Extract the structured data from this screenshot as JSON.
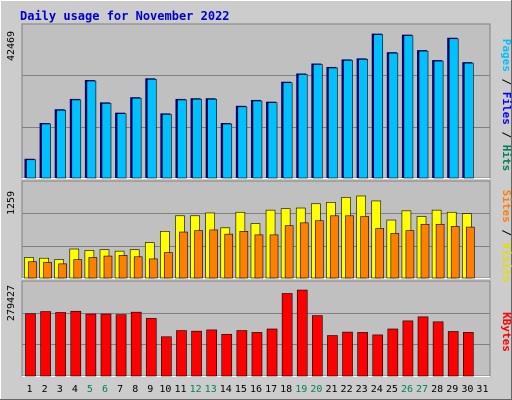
{
  "title": "Daily usage for November 2022",
  "right_labels": {
    "pages": "Pages",
    "files": "Files",
    "hits": "Hits",
    "sites": "Sites",
    "visits": "Visits",
    "kbytes": "KBytes",
    "sep": " / "
  },
  "colors": {
    "background": "#cccccc",
    "plot_bg": "#c0c0c0",
    "title": "#0000cc",
    "pages": "#00c0ff",
    "files": "#0000ff",
    "hits": "#00805c",
    "visits": "#ffff00",
    "sites": "#ff8000",
    "kbytes": "#ff0000",
    "weekend_day": "#00805c",
    "weekday": "#000000"
  },
  "chart_data": [
    {
      "type": "bar",
      "name": "hits-files-pages",
      "categories": [
        "1",
        "2",
        "3",
        "4",
        "5",
        "6",
        "7",
        "8",
        "9",
        "10",
        "11",
        "12",
        "13",
        "14",
        "15",
        "16",
        "17",
        "18",
        "19",
        "20",
        "21",
        "22",
        "23",
        "24",
        "25",
        "26",
        "27",
        "28",
        "29",
        "30",
        "31"
      ],
      "max_label": "42469",
      "ylim": [
        0,
        42469
      ],
      "series": [
        {
          "name": "Hits",
          "values": [
            5600,
            16000,
            20000,
            23000,
            28500,
            22000,
            19000,
            23500,
            29000,
            18800,
            23000,
            23200,
            23200,
            16000,
            21000,
            22700,
            22200,
            28000,
            30400,
            33300,
            32300,
            34500,
            34800,
            42000,
            36600,
            41700,
            37200,
            34300,
            40800,
            33700,
            null
          ]
        },
        {
          "name": "Pages",
          "values": [
            5600,
            16000,
            20000,
            23000,
            28500,
            22000,
            19000,
            23500,
            29000,
            18800,
            23000,
            23200,
            23200,
            16000,
            21000,
            22700,
            22200,
            28000,
            30400,
            33300,
            32300,
            34500,
            34800,
            42000,
            36600,
            41700,
            37200,
            34300,
            40800,
            33700,
            null
          ]
        }
      ]
    },
    {
      "type": "bar",
      "name": "visits-sites",
      "categories": [
        "1",
        "2",
        "3",
        "4",
        "5",
        "6",
        "7",
        "8",
        "9",
        "10",
        "11",
        "12",
        "13",
        "14",
        "15",
        "16",
        "17",
        "18",
        "19",
        "20",
        "21",
        "22",
        "23",
        "24",
        "25",
        "26",
        "27",
        "28",
        "29",
        "30",
        "31"
      ],
      "max_label": "1259",
      "ylim": [
        0,
        1259
      ],
      "series": [
        {
          "name": "Visits",
          "values": [
            290,
            280,
            260,
            410,
            390,
            400,
            380,
            400,
            500,
            660,
            880,
            880,
            920,
            710,
            930,
            770,
            960,
            980,
            990,
            1050,
            1070,
            1140,
            1160,
            1090,
            820,
            950,
            870,
            960,
            930,
            910,
            null
          ]
        },
        {
          "name": "Sites",
          "values": [
            230,
            220,
            200,
            260,
            290,
            310,
            320,
            300,
            270,
            360,
            650,
            670,
            680,
            620,
            660,
            610,
            610,
            740,
            780,
            810,
            880,
            880,
            870,
            700,
            630,
            670,
            760,
            760,
            730,
            720,
            null
          ]
        }
      ]
    },
    {
      "type": "bar",
      "name": "kbytes",
      "categories": [
        "1",
        "2",
        "3",
        "4",
        "5",
        "6",
        "7",
        "8",
        "9",
        "10",
        "11",
        "12",
        "13",
        "14",
        "15",
        "16",
        "17",
        "18",
        "19",
        "20",
        "21",
        "22",
        "23",
        "24",
        "25",
        "26",
        "27",
        "28",
        "29",
        "30",
        "31"
      ],
      "max_label": "279427",
      "ylim": [
        0,
        279427
      ],
      "series": [
        {
          "name": "KBytes",
          "values": [
            200000,
            207000,
            204000,
            208000,
            199000,
            199000,
            197000,
            205000,
            185000,
            126000,
            146000,
            144000,
            148000,
            134000,
            146000,
            140000,
            151000,
            265000,
            276000,
            194000,
            130000,
            141000,
            140000,
            132000,
            151000,
            177000,
            190000,
            174000,
            143000,
            140000,
            null
          ]
        }
      ]
    }
  ],
  "day_labels": [
    {
      "text": "1",
      "weekend": false
    },
    {
      "text": "2",
      "weekend": false
    },
    {
      "text": "3",
      "weekend": false
    },
    {
      "text": "4",
      "weekend": false
    },
    {
      "text": "5",
      "weekend": true
    },
    {
      "text": "6",
      "weekend": true
    },
    {
      "text": "7",
      "weekend": false
    },
    {
      "text": "8",
      "weekend": false
    },
    {
      "text": "9",
      "weekend": false
    },
    {
      "text": "10",
      "weekend": false
    },
    {
      "text": "11",
      "weekend": false
    },
    {
      "text": "12",
      "weekend": true
    },
    {
      "text": "13",
      "weekend": true
    },
    {
      "text": "14",
      "weekend": false
    },
    {
      "text": "15",
      "weekend": false
    },
    {
      "text": "16",
      "weekend": false
    },
    {
      "text": "17",
      "weekend": false
    },
    {
      "text": "18",
      "weekend": false
    },
    {
      "text": "19",
      "weekend": true
    },
    {
      "text": "20",
      "weekend": true
    },
    {
      "text": "21",
      "weekend": false
    },
    {
      "text": "22",
      "weekend": false
    },
    {
      "text": "23",
      "weekend": false
    },
    {
      "text": "24",
      "weekend": false
    },
    {
      "text": "25",
      "weekend": false
    },
    {
      "text": "26",
      "weekend": true
    },
    {
      "text": "27",
      "weekend": true
    },
    {
      "text": "28",
      "weekend": false
    },
    {
      "text": "29",
      "weekend": false
    },
    {
      "text": "30",
      "weekend": false
    },
    {
      "text": "31",
      "weekend": false
    }
  ]
}
